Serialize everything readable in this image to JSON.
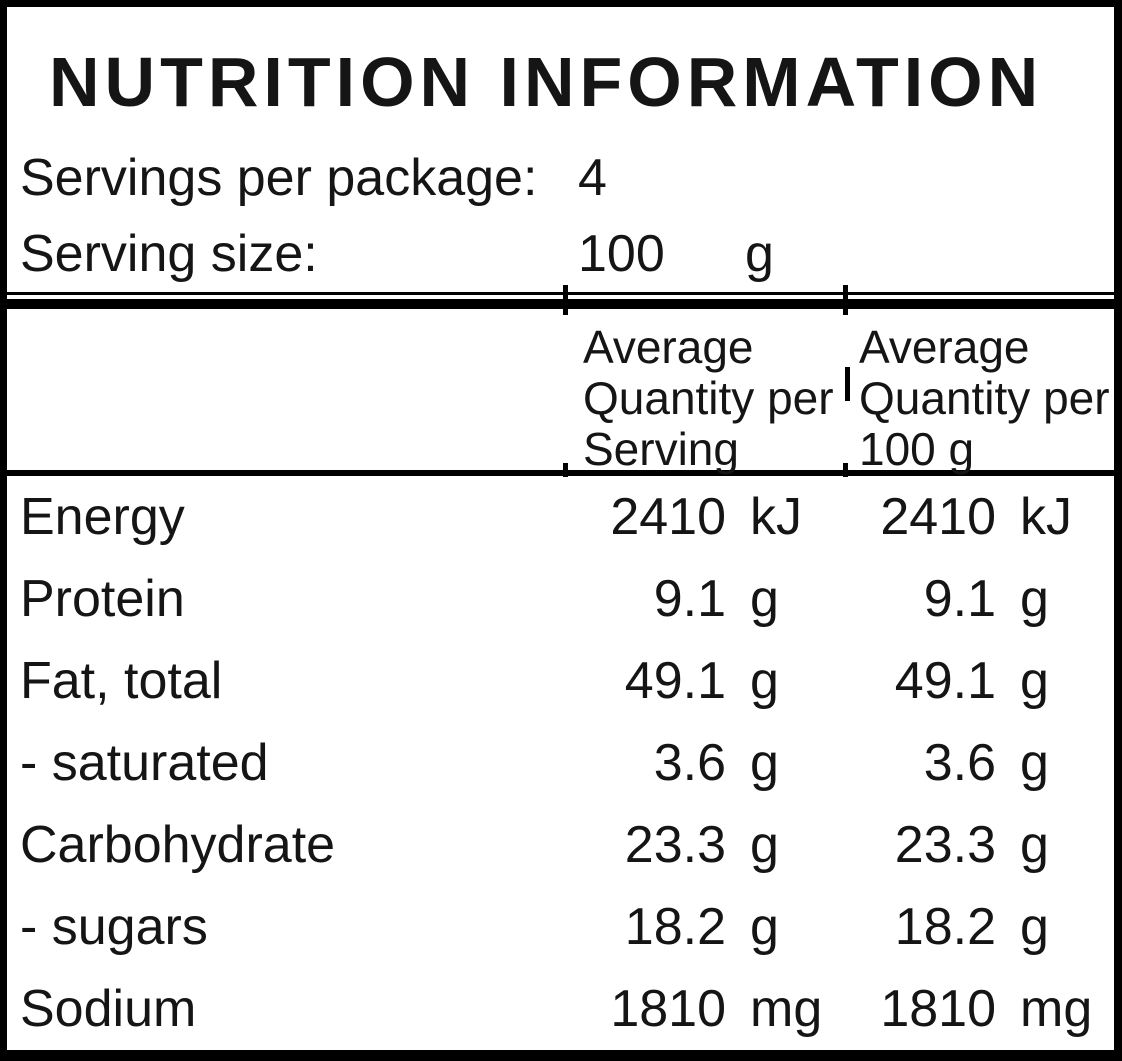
{
  "panel": {
    "title": "NUTRITION INFORMATION",
    "servings_per_package": {
      "label": "Servings per package:",
      "value": "4"
    },
    "serving_size": {
      "label": "Serving size:",
      "value": "100",
      "unit": "g"
    }
  },
  "table": {
    "header": {
      "per_serving": "Average Quantity per Serving",
      "per_100g": "Average Quantity per 100 g"
    },
    "rows": [
      {
        "nutrient": "Energy",
        "per_serving_value": "2410",
        "per_serving_unit": "kJ",
        "per_100g_value": "2410",
        "per_100g_unit": "kJ"
      },
      {
        "nutrient": "Protein",
        "per_serving_value": "9.1",
        "per_serving_unit": "g",
        "per_100g_value": "9.1",
        "per_100g_unit": "g"
      },
      {
        "nutrient": "Fat, total",
        "per_serving_value": "49.1",
        "per_serving_unit": "g",
        "per_100g_value": "49.1",
        "per_100g_unit": "g"
      },
      {
        "nutrient": "- saturated",
        "per_serving_value": "3.6",
        "per_serving_unit": "g",
        "per_100g_value": "3.6",
        "per_100g_unit": "g"
      },
      {
        "nutrient": "Carbohydrate",
        "per_serving_value": "23.3",
        "per_serving_unit": "g",
        "per_100g_value": "23.3",
        "per_100g_unit": "g"
      },
      {
        "nutrient": "- sugars",
        "per_serving_value": "18.2",
        "per_serving_unit": "g",
        "per_100g_value": "18.2",
        "per_100g_unit": "g"
      },
      {
        "nutrient": "Sodium",
        "per_serving_value": "1810",
        "per_serving_unit": "mg",
        "per_100g_value": "1810",
        "per_100g_unit": "mg"
      }
    ]
  },
  "colors": {
    "background": "#ffffff",
    "text": "#151515",
    "border": "#000000"
  }
}
